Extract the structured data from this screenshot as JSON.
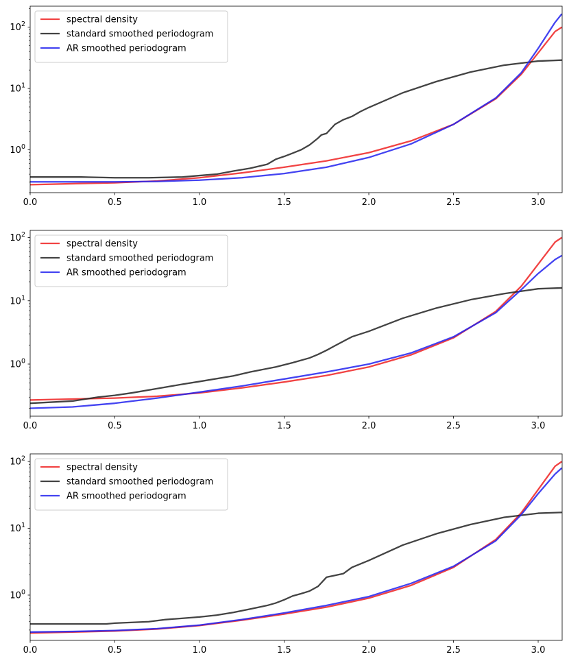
{
  "chart_data": [
    {
      "type": "line",
      "yscale": "log",
      "xlim": [
        0,
        3.1416
      ],
      "ylim": [
        0.2,
        220
      ],
      "xticks": [
        "0.0",
        "0.5",
        "1.0",
        "1.5",
        "2.0",
        "2.5",
        "3.0"
      ],
      "yticks": [
        {
          "exp": "0",
          "value": 1
        },
        {
          "exp": "1",
          "value": 10
        },
        {
          "exp": "2",
          "value": 100
        }
      ],
      "legend": {
        "position": "upper-left"
      },
      "series": [
        {
          "name": "spectral density",
          "color": "#ee2222",
          "x": [
            0,
            0.25,
            0.5,
            0.75,
            1.0,
            1.25,
            1.5,
            1.75,
            2.0,
            2.25,
            2.5,
            2.75,
            2.9,
            3.0,
            3.1,
            3.14
          ],
          "y": [
            0.27,
            0.28,
            0.29,
            0.31,
            0.35,
            0.42,
            0.52,
            0.66,
            0.9,
            1.4,
            2.6,
            6.8,
            17,
            38,
            85,
            100
          ]
        },
        {
          "name": "standard smoothed periodogram",
          "color": "#222222",
          "x": [
            0,
            0.3,
            0.5,
            0.7,
            0.9,
            1.0,
            1.1,
            1.2,
            1.3,
            1.4,
            1.45,
            1.5,
            1.55,
            1.6,
            1.65,
            1.7,
            1.72,
            1.75,
            1.8,
            1.85,
            1.9,
            1.95,
            2.0,
            2.2,
            2.4,
            2.6,
            2.8,
            3.0,
            3.14
          ],
          "y": [
            0.36,
            0.36,
            0.35,
            0.35,
            0.36,
            0.38,
            0.4,
            0.45,
            0.5,
            0.58,
            0.7,
            0.78,
            0.88,
            1.0,
            1.2,
            1.55,
            1.75,
            1.85,
            2.6,
            3.1,
            3.5,
            4.2,
            4.9,
            8.5,
            13,
            18.5,
            24,
            28,
            29
          ]
        },
        {
          "name": "AR smoothed periodogram",
          "color": "#2222ee",
          "x": [
            0,
            0.25,
            0.5,
            0.75,
            1.0,
            1.25,
            1.5,
            1.75,
            2.0,
            2.25,
            2.5,
            2.75,
            2.9,
            3.0,
            3.1,
            3.14
          ],
          "y": [
            0.3,
            0.3,
            0.3,
            0.305,
            0.32,
            0.35,
            0.41,
            0.52,
            0.75,
            1.25,
            2.6,
            7.0,
            18,
            45,
            120,
            165
          ]
        }
      ]
    },
    {
      "type": "line",
      "yscale": "log",
      "xlim": [
        0,
        3.1416
      ],
      "ylim": [
        0.15,
        130
      ],
      "xticks": [
        "0.0",
        "0.5",
        "1.0",
        "1.5",
        "2.0",
        "2.5",
        "3.0"
      ],
      "yticks": [
        {
          "exp": "0",
          "value": 1
        },
        {
          "exp": "1",
          "value": 10
        },
        {
          "exp": "2",
          "value": 100
        }
      ],
      "legend": {
        "position": "upper-left"
      },
      "series": [
        {
          "name": "spectral density",
          "color": "#ee2222",
          "x": [
            0,
            0.25,
            0.5,
            0.75,
            1.0,
            1.25,
            1.5,
            1.75,
            2.0,
            2.25,
            2.5,
            2.75,
            2.9,
            3.0,
            3.1,
            3.14
          ],
          "y": [
            0.27,
            0.28,
            0.29,
            0.31,
            0.35,
            0.42,
            0.52,
            0.66,
            0.9,
            1.4,
            2.6,
            6.8,
            17,
            38,
            85,
            100
          ]
        },
        {
          "name": "standard smoothed periodogram",
          "color": "#222222",
          "x": [
            0,
            0.25,
            0.4,
            0.5,
            0.6,
            0.75,
            0.9,
            1.0,
            1.2,
            1.3,
            1.45,
            1.55,
            1.65,
            1.7,
            1.75,
            1.8,
            1.9,
            2.0,
            2.2,
            2.4,
            2.6,
            2.8,
            3.0,
            3.14
          ],
          "y": [
            0.24,
            0.26,
            0.3,
            0.32,
            0.35,
            0.41,
            0.48,
            0.53,
            0.65,
            0.75,
            0.9,
            1.05,
            1.25,
            1.42,
            1.65,
            1.95,
            2.7,
            3.3,
            5.3,
            7.7,
            10.4,
            13,
            15.5,
            16
          ]
        },
        {
          "name": "AR smoothed periodogram",
          "color": "#2222ee",
          "x": [
            0,
            0.25,
            0.5,
            0.75,
            1.0,
            1.25,
            1.5,
            1.75,
            2.0,
            2.25,
            2.5,
            2.75,
            2.9,
            3.0,
            3.1,
            3.14
          ],
          "y": [
            0.2,
            0.21,
            0.24,
            0.29,
            0.36,
            0.45,
            0.58,
            0.75,
            1.0,
            1.5,
            2.7,
            6.5,
            15,
            27,
            45,
            52
          ]
        }
      ]
    },
    {
      "type": "line",
      "yscale": "log",
      "xlim": [
        0,
        3.1416
      ],
      "ylim": [
        0.21,
        130
      ],
      "xticks": [
        "0.0",
        "0.5",
        "1.0",
        "1.5",
        "2.0",
        "2.5",
        "3.0"
      ],
      "yticks": [
        {
          "exp": "0",
          "value": 1
        },
        {
          "exp": "1",
          "value": 10
        },
        {
          "exp": "2",
          "value": 100
        }
      ],
      "legend": {
        "position": "upper-left"
      },
      "series": [
        {
          "name": "spectral density",
          "color": "#ee2222",
          "x": [
            0,
            0.25,
            0.5,
            0.75,
            1.0,
            1.25,
            1.5,
            1.75,
            2.0,
            2.25,
            2.5,
            2.75,
            2.9,
            3.0,
            3.1,
            3.14
          ],
          "y": [
            0.27,
            0.28,
            0.29,
            0.31,
            0.35,
            0.42,
            0.52,
            0.66,
            0.9,
            1.4,
            2.6,
            6.8,
            17,
            38,
            85,
            100
          ]
        },
        {
          "name": "standard smoothed periodogram",
          "color": "#222222",
          "x": [
            0,
            0.45,
            0.5,
            0.7,
            0.8,
            1.0,
            1.1,
            1.2,
            1.3,
            1.4,
            1.45,
            1.5,
            1.55,
            1.6,
            1.65,
            1.7,
            1.75,
            1.85,
            1.9,
            2.0,
            2.2,
            2.4,
            2.6,
            2.8,
            3.0,
            3.14
          ],
          "y": [
            0.37,
            0.37,
            0.38,
            0.4,
            0.43,
            0.47,
            0.5,
            0.55,
            0.62,
            0.7,
            0.76,
            0.85,
            0.97,
            1.05,
            1.15,
            1.35,
            1.85,
            2.1,
            2.6,
            3.3,
            5.6,
            8.3,
            11.4,
            14.6,
            16.8,
            17.3
          ]
        },
        {
          "name": "AR smoothed periodogram",
          "color": "#2222ee",
          "x": [
            0,
            0.25,
            0.5,
            0.75,
            1.0,
            1.25,
            1.5,
            1.75,
            2.0,
            2.25,
            2.5,
            2.75,
            2.9,
            3.0,
            3.1,
            3.14
          ],
          "y": [
            0.28,
            0.285,
            0.295,
            0.315,
            0.355,
            0.43,
            0.54,
            0.7,
            0.95,
            1.5,
            2.7,
            6.5,
            16,
            33,
            65,
            80
          ]
        }
      ]
    }
  ]
}
